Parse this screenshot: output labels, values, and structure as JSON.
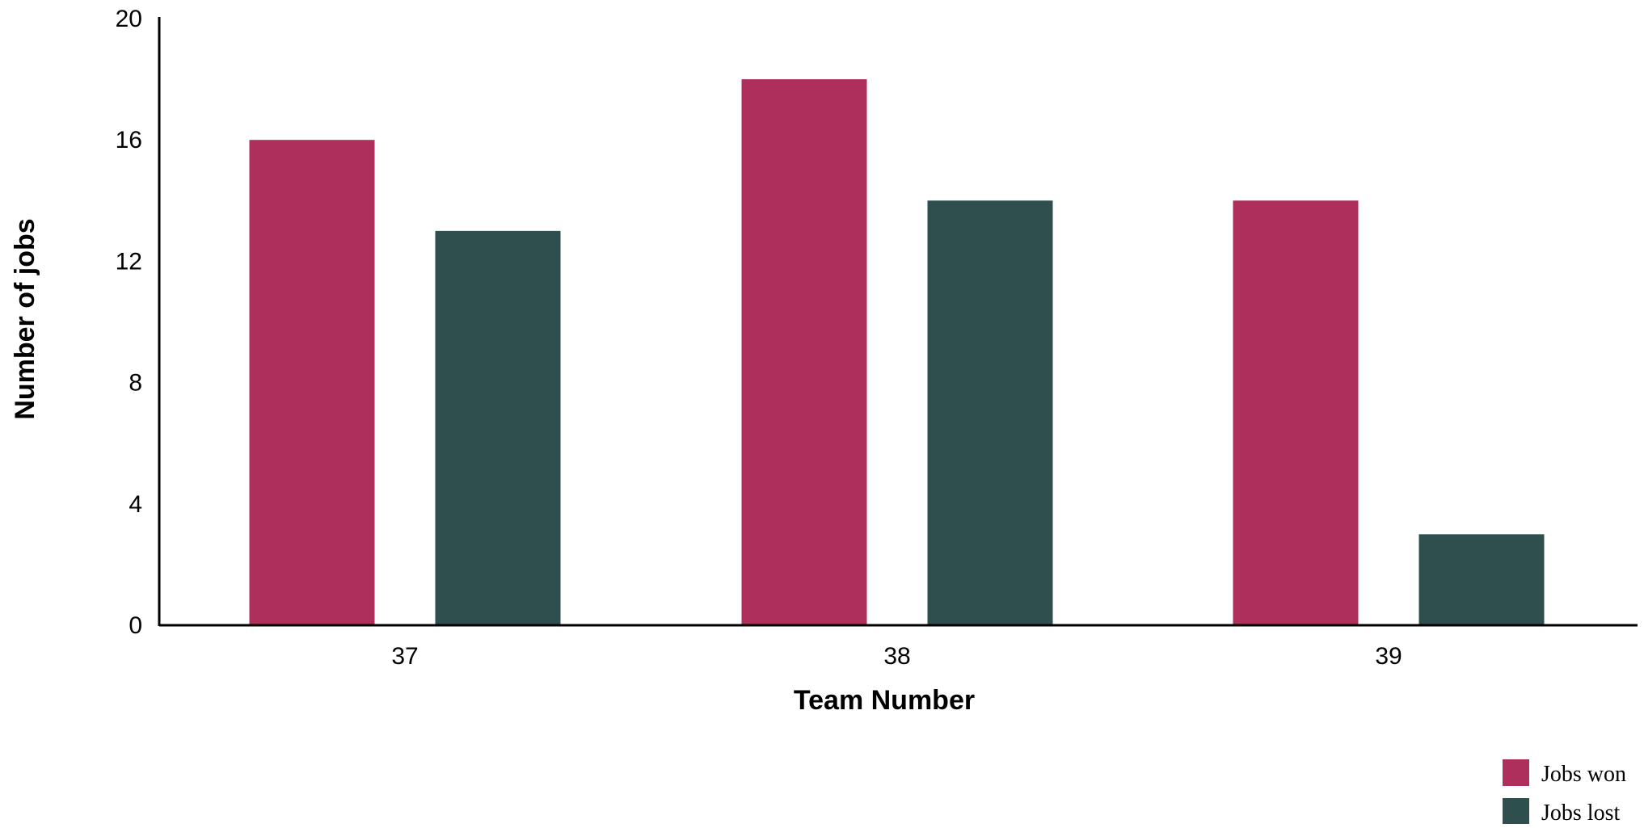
{
  "chart_data": {
    "type": "bar",
    "title": "",
    "xlabel": "Team Number",
    "ylabel": "Number of jobs",
    "categories": [
      "37",
      "38",
      "39"
    ],
    "series": [
      {
        "name": "Jobs won",
        "values": [
          16,
          18,
          14
        ],
        "color": "#AE2F5C"
      },
      {
        "name": "Jobs lost",
        "values": [
          13,
          14,
          3
        ],
        "color": "#2F4F4F"
      }
    ],
    "ylim": [
      0,
      20
    ],
    "yticks": [
      "0",
      "4",
      "8",
      "12",
      "16",
      "20"
    ],
    "grid": false,
    "legend_position": "bottom-right"
  }
}
